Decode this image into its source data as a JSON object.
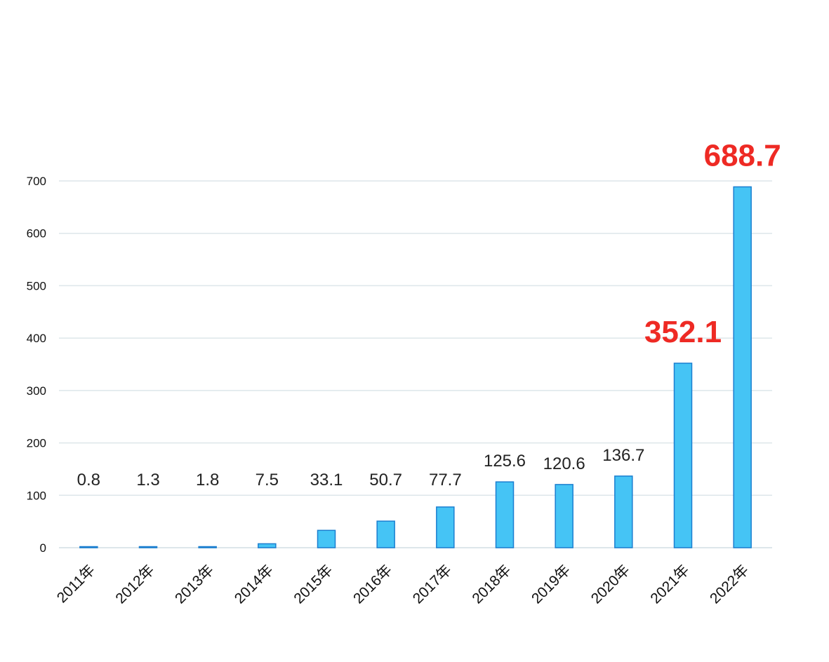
{
  "chart_data": {
    "type": "bar",
    "title": "",
    "xlabel": "",
    "ylabel": "",
    "categories": [
      "2011年",
      "2012年",
      "2013年",
      "2014年",
      "2015年",
      "2016年",
      "2017年",
      "2018年",
      "2019年",
      "2020年",
      "2021年",
      "2022年"
    ],
    "values": [
      0.8,
      1.3,
      1.8,
      7.5,
      33.1,
      50.7,
      77.7,
      125.6,
      120.6,
      136.7,
      352.1,
      688.7
    ],
    "value_labels": [
      "0.8",
      "1.3",
      "1.8",
      "7.5",
      "33.1",
      "50.7",
      "77.7",
      "125.6",
      "120.6",
      "136.7",
      "352.1",
      "688.7"
    ],
    "highlighted_labels": [
      "2021年",
      "2022年"
    ],
    "ylim": [
      0,
      700
    ],
    "yticks": [
      0,
      100,
      200,
      300,
      400,
      500,
      600,
      700
    ],
    "grid": true,
    "legend": "none",
    "colors": {
      "bar_fill": "#45c4f5",
      "bar_stroke": "#1b7fd0",
      "grid": "#dde6ea",
      "tick_text": "#111111",
      "value_label": "#222222",
      "highlight_label": "#ee2a24"
    }
  }
}
